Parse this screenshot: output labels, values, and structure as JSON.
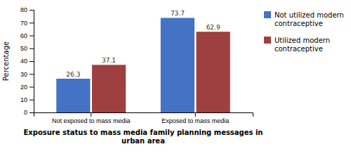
{
  "chart_data": {
    "type": "bar",
    "categories": [
      "Not exposed to mass media",
      "Exposed to mass media"
    ],
    "series": [
      {
        "name": "Not utilized modern\ncontraceptive",
        "color": "#4472C4",
        "values": [
          26.3,
          73.7
        ]
      },
      {
        "name": "Utilized modern\ncontraceptive",
        "color": "#9E4040",
        "values": [
          37.1,
          62.9
        ]
      }
    ],
    "ylabel": "Percentage",
    "xlabel": "Exposure status to mass media family planning messages in\nurban area",
    "ylim": [
      0,
      80
    ],
    "yticks": [
      0,
      10,
      20,
      30,
      40,
      50,
      60,
      70,
      80
    ],
    "grid": false,
    "legend": "right",
    "data_labels": true
  }
}
